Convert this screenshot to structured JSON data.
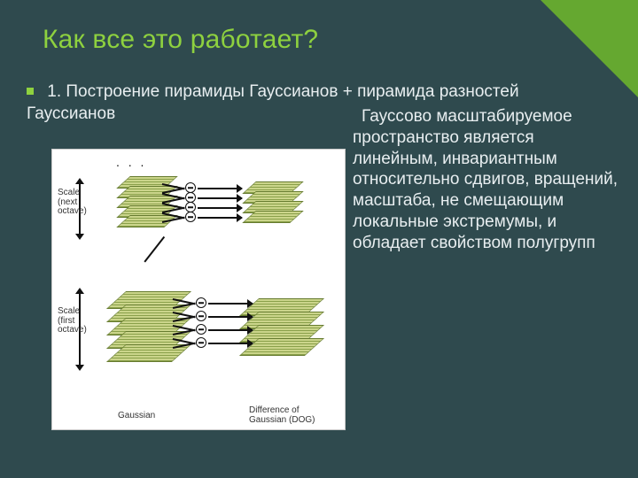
{
  "slide": {
    "title": "Как все это работает?",
    "intro": "1. Построение пирамиды Гауссианов + пирамида разностей Гауссианов",
    "right": "Гауссово масштабируемое пространство является линейным, инвариантным относительно сдвигов, вращений, масштаба, не смещающим локальные экстремумы, и обладает свойством полугрупп"
  },
  "style": {
    "background_color": "#2f4a4e",
    "accent_color": "#6fb92b",
    "title_color": "#8ed13f",
    "text_color": "#e8eef0",
    "title_fontsize": 30,
    "body_fontsize": 19
  },
  "diagram": {
    "type": "flowchart",
    "background": "#ffffff",
    "labels": {
      "scale_first": "Scale\n(first\noctave)",
      "scale_next": "Scale\n(next\noctave)",
      "gaussian": "Gaussian",
      "dog": "Difference of\nGaussian (DOG)",
      "ellipsis": ". . ."
    },
    "plane_color_dark": "#8aa04a",
    "plane_color_light": "#cbd58b",
    "plane_border": "#667b2f",
    "stack1_planes": 5,
    "stack2_planes": 5,
    "dog1_planes": 4,
    "dog2_planes": 4,
    "plane_vgap": 15,
    "plane_vgap_small": 11
  }
}
